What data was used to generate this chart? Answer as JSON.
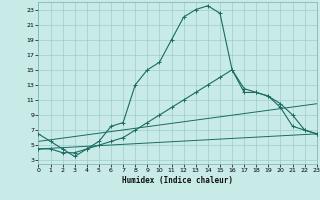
{
  "xlabel": "Humidex (Indice chaleur)",
  "bg_color": "#c8ebe8",
  "grid_color": "#9ececa",
  "line_color": "#1a6b60",
  "x_ticks": [
    0,
    1,
    2,
    3,
    4,
    5,
    6,
    7,
    8,
    9,
    10,
    11,
    12,
    13,
    14,
    15,
    16,
    17,
    18,
    19,
    20,
    21,
    22,
    23
  ],
  "y_ticks": [
    3,
    5,
    7,
    9,
    11,
    13,
    15,
    17,
    19,
    21,
    23
  ],
  "xlim": [
    0,
    23
  ],
  "ylim": [
    2.5,
    24.0
  ],
  "line1_x": [
    0,
    1,
    2,
    3,
    4,
    5,
    6,
    7,
    8,
    9,
    10,
    11,
    12,
    13,
    14,
    15,
    16,
    17,
    18,
    19,
    20,
    21,
    22,
    23
  ],
  "line1_y": [
    6.5,
    5.5,
    4.5,
    3.5,
    4.5,
    5.5,
    7.5,
    8,
    13,
    15,
    16,
    19,
    22,
    23,
    23.5,
    22.5,
    15,
    12.5,
    12,
    11.5,
    10,
    7.5,
    7,
    6.5
  ],
  "line2_x": [
    0,
    1,
    2,
    3,
    4,
    5,
    6,
    7,
    8,
    9,
    10,
    11,
    12,
    13,
    14,
    15,
    16,
    17,
    18,
    19,
    20,
    21,
    22,
    23
  ],
  "line2_y": [
    4.5,
    4.5,
    4,
    4,
    4.5,
    5,
    5.5,
    6,
    7,
    8,
    9,
    10,
    11,
    12,
    13,
    14,
    15,
    12,
    12,
    11.5,
    10.5,
    9,
    7,
    6.5
  ],
  "line3_x": [
    0,
    23
  ],
  "line3_y": [
    5.5,
    10.5
  ],
  "line4_x": [
    0,
    23
  ],
  "line4_y": [
    4.5,
    6.5
  ]
}
